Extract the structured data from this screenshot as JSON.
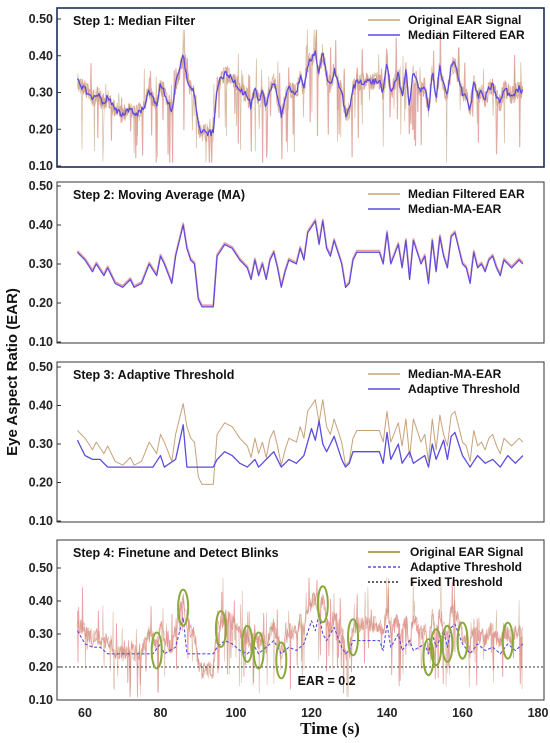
{
  "figure": {
    "ylabel": "Eye Aspect Ratio (EAR)",
    "xlabel": "Time (s)",
    "x_ticks": [
      60,
      80,
      100,
      120,
      140,
      160,
      180
    ]
  },
  "colors": {
    "original": "#c8a27a",
    "original_step4": "#e89a9a",
    "median": "#5b4be0",
    "ma": "#5b4be0",
    "adaptive": "#5b4be0",
    "fixed": "#333333",
    "blink_ellipse": "#8aa83a",
    "frame_step1": "#1d2c5a"
  },
  "chart_data": [
    {
      "type": "line",
      "title": "Step 1: Median Filter",
      "xlim": [
        55,
        180
      ],
      "ylim": [
        0.1,
        0.5
      ],
      "y_ticks": [
        "0.10",
        "0.20",
        "0.30",
        "0.40",
        "0.50"
      ],
      "legend": {
        "placement": "top-right"
      },
      "series": [
        {
          "name": "Original EAR Signal",
          "style": "noisy-solid",
          "color_key": "original"
        },
        {
          "name": "Median Filtered EAR",
          "style": "solid",
          "color_key": "median"
        }
      ]
    },
    {
      "type": "line",
      "title": "Step 2: Moving Average (MA)",
      "xlim": [
        55,
        180
      ],
      "ylim": [
        0.1,
        0.5
      ],
      "y_ticks": [
        "0.10",
        "0.20",
        "0.30",
        "0.40",
        "0.50"
      ],
      "legend": {
        "placement": "top-right"
      },
      "series": [
        {
          "name": "Median Filtered EAR",
          "style": "solid",
          "color_key": "original"
        },
        {
          "name": "Median-MA-EAR",
          "style": "solid",
          "color_key": "ma"
        }
      ]
    },
    {
      "type": "line",
      "title": "Step 3: Adaptive Threshold",
      "xlim": [
        55,
        180
      ],
      "ylim": [
        0.1,
        0.5
      ],
      "y_ticks": [
        "0.10",
        "0.20",
        "0.30",
        "0.40",
        "0.50"
      ],
      "legend": {
        "placement": "top-right"
      },
      "series": [
        {
          "name": "Median-MA-EAR",
          "style": "solid",
          "color_key": "original"
        },
        {
          "name": "Adaptive Threshold",
          "style": "solid",
          "color_key": "adaptive"
        }
      ]
    },
    {
      "type": "line",
      "title": "Step 4: Finetune and Detect Blinks",
      "xlim": [
        55,
        180
      ],
      "ylim": [
        0.1,
        0.5
      ],
      "y_ticks": [
        "0.10",
        "0.20",
        "0.30",
        "0.40",
        "0.50"
      ],
      "legend": {
        "placement": "top-right"
      },
      "series": [
        {
          "name": "Original EAR Signal",
          "style": "noisy-solid",
          "color_key": "original_step4"
        },
        {
          "name": "Adaptive Threshold",
          "style": "dashed",
          "color_key": "adaptive"
        },
        {
          "name": "Fixed Threshold",
          "style": "dotted",
          "color_key": "fixed",
          "value": 0.2
        }
      ],
      "annotation": "EAR = 0.2",
      "blinks_x": [
        79,
        86,
        96,
        103,
        106,
        112,
        123,
        131,
        151,
        153,
        156,
        160,
        172
      ]
    }
  ],
  "signals": {
    "base_knots": [
      [
        58,
        0.33
      ],
      [
        60,
        0.31
      ],
      [
        62,
        0.28
      ],
      [
        63,
        0.3
      ],
      [
        65,
        0.27
      ],
      [
        66,
        0.29
      ],
      [
        68,
        0.25
      ],
      [
        70,
        0.24
      ],
      [
        72,
        0.26
      ],
      [
        73,
        0.24
      ],
      [
        75,
        0.25
      ],
      [
        77,
        0.3
      ],
      [
        79,
        0.27
      ],
      [
        80,
        0.32
      ],
      [
        81,
        0.3
      ],
      [
        83,
        0.25
      ],
      [
        84,
        0.32
      ],
      [
        86,
        0.4
      ],
      [
        87,
        0.34
      ],
      [
        88,
        0.31
      ],
      [
        89,
        0.3
      ],
      [
        90,
        0.21
      ],
      [
        91,
        0.19
      ],
      [
        94,
        0.19
      ],
      [
        95,
        0.32
      ],
      [
        97,
        0.35
      ],
      [
        99,
        0.34
      ],
      [
        101,
        0.31
      ],
      [
        103,
        0.29
      ],
      [
        104,
        0.26
      ],
      [
        105,
        0.31
      ],
      [
        106,
        0.27
      ],
      [
        107,
        0.3
      ],
      [
        108,
        0.26
      ],
      [
        109,
        0.31
      ],
      [
        110,
        0.33
      ],
      [
        111,
        0.29
      ],
      [
        112,
        0.24
      ],
      [
        113,
        0.28
      ],
      [
        114,
        0.31
      ],
      [
        116,
        0.3
      ],
      [
        117,
        0.34
      ],
      [
        118,
        0.31
      ],
      [
        119,
        0.38
      ],
      [
        121,
        0.41
      ],
      [
        122,
        0.35
      ],
      [
        123,
        0.41
      ],
      [
        124,
        0.34
      ],
      [
        125,
        0.32
      ],
      [
        126,
        0.36
      ],
      [
        127,
        0.33
      ],
      [
        128,
        0.3
      ],
      [
        129,
        0.24
      ],
      [
        130,
        0.25
      ],
      [
        131,
        0.31
      ],
      [
        132,
        0.33
      ],
      [
        135,
        0.33
      ],
      [
        138,
        0.33
      ],
      [
        139,
        0.3
      ],
      [
        140,
        0.38
      ],
      [
        141,
        0.3
      ],
      [
        143,
        0.35
      ],
      [
        144,
        0.29
      ],
      [
        145,
        0.36
      ],
      [
        146,
        0.26
      ],
      [
        147,
        0.36
      ],
      [
        149,
        0.3
      ],
      [
        150,
        0.32
      ],
      [
        151,
        0.25
      ],
      [
        152,
        0.36
      ],
      [
        153,
        0.28
      ],
      [
        154,
        0.37
      ],
      [
        155,
        0.32
      ],
      [
        156,
        0.29
      ],
      [
        157,
        0.37
      ],
      [
        158,
        0.38
      ],
      [
        159,
        0.34
      ],
      [
        160,
        0.3
      ],
      [
        161,
        0.29
      ],
      [
        162,
        0.25
      ],
      [
        163,
        0.33
      ],
      [
        164,
        0.29
      ],
      [
        165,
        0.3
      ],
      [
        166,
        0.28
      ],
      [
        167,
        0.31
      ],
      [
        168,
        0.32
      ],
      [
        169,
        0.29
      ],
      [
        170,
        0.27
      ],
      [
        171,
        0.31
      ],
      [
        172,
        0.3
      ],
      [
        173,
        0.29
      ],
      [
        175,
        0.31
      ],
      [
        176,
        0.3
      ]
    ],
    "adaptive_knots": [
      [
        58,
        0.31
      ],
      [
        60,
        0.27
      ],
      [
        62,
        0.26
      ],
      [
        64,
        0.26
      ],
      [
        66,
        0.24
      ],
      [
        78,
        0.24
      ],
      [
        80,
        0.27
      ],
      [
        81,
        0.24
      ],
      [
        84,
        0.26
      ],
      [
        86,
        0.35
      ],
      [
        87,
        0.24
      ],
      [
        94,
        0.24
      ],
      [
        95,
        0.26
      ],
      [
        97,
        0.28
      ],
      [
        99,
        0.27
      ],
      [
        101,
        0.25
      ],
      [
        103,
        0.24
      ],
      [
        105,
        0.26
      ],
      [
        106,
        0.24
      ],
      [
        108,
        0.26
      ],
      [
        110,
        0.28
      ],
      [
        112,
        0.24
      ],
      [
        114,
        0.26
      ],
      [
        116,
        0.25
      ],
      [
        118,
        0.27
      ],
      [
        120,
        0.34
      ],
      [
        121,
        0.31
      ],
      [
        122,
        0.36
      ],
      [
        123,
        0.3
      ],
      [
        124,
        0.28
      ],
      [
        126,
        0.32
      ],
      [
        128,
        0.26
      ],
      [
        129,
        0.24
      ],
      [
        130,
        0.25
      ],
      [
        131,
        0.28
      ],
      [
        138,
        0.28
      ],
      [
        139,
        0.25
      ],
      [
        140,
        0.33
      ],
      [
        141,
        0.26
      ],
      [
        143,
        0.3
      ],
      [
        144,
        0.25
      ],
      [
        146,
        0.28
      ],
      [
        147,
        0.25
      ],
      [
        150,
        0.27
      ],
      [
        151,
        0.24
      ],
      [
        152,
        0.3
      ],
      [
        153,
        0.26
      ],
      [
        155,
        0.31
      ],
      [
        156,
        0.26
      ],
      [
        157,
        0.32
      ],
      [
        158,
        0.33
      ],
      [
        160,
        0.27
      ],
      [
        162,
        0.24
      ],
      [
        164,
        0.27
      ],
      [
        166,
        0.25
      ],
      [
        168,
        0.26
      ],
      [
        170,
        0.24
      ],
      [
        172,
        0.27
      ],
      [
        174,
        0.25
      ],
      [
        176,
        0.27
      ]
    ]
  }
}
